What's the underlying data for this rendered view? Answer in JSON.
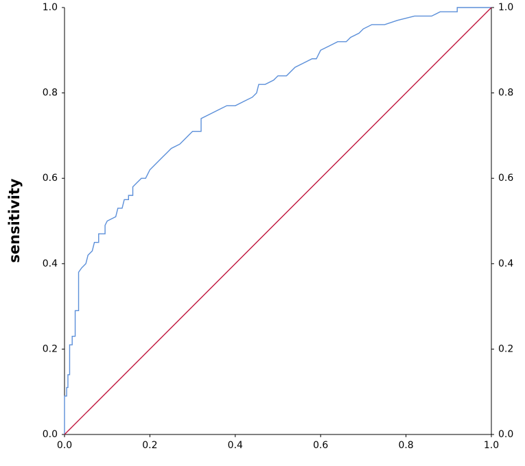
{
  "chart_data": {
    "type": "line",
    "y_label": "sensitivity",
    "xlim": [
      0,
      1
    ],
    "ylim": [
      0,
      1
    ],
    "y2lim": [
      0,
      1
    ],
    "xticks": [
      {
        "value": 0,
        "label": "0.0"
      },
      0.2,
      0.4,
      0.6,
      0.8,
      {
        "value": 1,
        "label": "1.0"
      }
    ],
    "yticks": [
      {
        "value": 0,
        "label": "0.0"
      },
      0.2,
      0.4,
      0.6,
      0.8,
      {
        "value": 1,
        "label": "1.0"
      }
    ],
    "y2ticks": [
      {
        "value": 0,
        "label": "0.0"
      },
      0.2,
      0.4,
      0.6,
      0.8,
      {
        "value": 1,
        "label": "1.0"
      }
    ],
    "grid": false,
    "series": [
      {
        "color": "#5b8fd9",
        "x": [
          0,
          0,
          0.005,
          0.005,
          0.008,
          0.008,
          0.012,
          0.012,
          0.018,
          0.018,
          0.025,
          0.025,
          0.033,
          0.033,
          0.04,
          0.05,
          0.055,
          0.065,
          0.07,
          0.08,
          0.08,
          0.095,
          0.095,
          0.1,
          0.12,
          0.125,
          0.135,
          0.14,
          0.15,
          0.15,
          0.16,
          0.16,
          0.17,
          0.18,
          0.19,
          0.2,
          0.21,
          0.22,
          0.23,
          0.24,
          0.25,
          0.27,
          0.28,
          0.29,
          0.3,
          0.32,
          0.32,
          0.34,
          0.36,
          0.38,
          0.4,
          0.42,
          0.44,
          0.45,
          0.455,
          0.47,
          0.49,
          0.5,
          0.52,
          0.54,
          0.56,
          0.58,
          0.59,
          0.6,
          0.62,
          0.64,
          0.66,
          0.67,
          0.69,
          0.7,
          0.72,
          0.75,
          0.78,
          0.82,
          0.86,
          0.88,
          0.92,
          0.92,
          1.0
        ],
        "values": [
          0,
          0.09,
          0.09,
          0.11,
          0.11,
          0.14,
          0.14,
          0.21,
          0.21,
          0.23,
          0.23,
          0.29,
          0.29,
          0.38,
          0.39,
          0.4,
          0.42,
          0.43,
          0.45,
          0.45,
          0.47,
          0.47,
          0.49,
          0.5,
          0.51,
          0.53,
          0.53,
          0.55,
          0.55,
          0.56,
          0.56,
          0.58,
          0.59,
          0.6,
          0.6,
          0.62,
          0.63,
          0.64,
          0.65,
          0.66,
          0.67,
          0.68,
          0.69,
          0.7,
          0.71,
          0.71,
          0.74,
          0.75,
          0.76,
          0.77,
          0.77,
          0.78,
          0.79,
          0.8,
          0.82,
          0.82,
          0.83,
          0.84,
          0.84,
          0.86,
          0.87,
          0.88,
          0.88,
          0.9,
          0.91,
          0.92,
          0.92,
          0.93,
          0.94,
          0.95,
          0.96,
          0.96,
          0.97,
          0.98,
          0.98,
          0.99,
          0.99,
          1.0,
          1.0
        ]
      },
      {
        "color": "#c0143c",
        "x": [
          0,
          1
        ],
        "values": [
          0,
          1
        ]
      }
    ]
  }
}
